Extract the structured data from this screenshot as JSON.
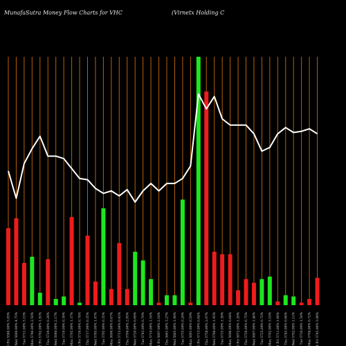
{
  "header": {
    "title_left": "MunafaSutra  Money Flow  Charts for VHC",
    "title_right": "(Virnetx Holding C"
  },
  "chart_data": {
    "type": "bar",
    "title": "MunafaSutra  Money Flow  Charts for VHC",
    "subtitle": "(Virnetx Holding C",
    "colors": {
      "up": "#1ee61e",
      "down": "#ee1c1c",
      "line": "#ffffff",
      "grid": "#b8620a",
      "background": "#000000"
    },
    "categories": [
      "29 Fri Nov 2024",
      "27 Wed Nov 2024",
      "26 Tue Nov 2024",
      "25 Mon Nov 2024",
      "22 Fri Nov 2024",
      "21 Thu Nov 2024",
      "20 Wed Nov 2024",
      "19 Tue Nov 2024",
      "18 Mon Nov 2024",
      "15 Fri Nov 2024",
      "14 Thu Nov 2024",
      "13 Wed Nov 2024",
      "12 Tue Nov 2024",
      "11 Mon Nov 2024",
      "08 Fri Nov 2024",
      "07 Thu Nov 2024",
      "06 Wed Nov 2024",
      "05 Tue Nov 2024",
      "04 Mon Nov 2024",
      "01 Fri Nov 2024",
      "31 Thu Oct 2024",
      "30 Wed Oct 2024",
      "29 Tue Oct 2024",
      "28 Mon Oct 2024",
      "25 Fri Oct 2024",
      "24 Thu Oct 2024",
      "23 Wed Oct 2024",
      "22 Tue Oct 2024",
      "21 Mon Oct 2024",
      "18 Fri Oct 2024",
      "17 Thu Oct 2024",
      "16 Wed Oct 2024",
      "15 Tue Oct 2024",
      "14 Mon Oct 2024",
      "11 Fri Oct 2024",
      "10 Thu Oct 2024",
      "09 Wed Oct 2024",
      "08 Tue Oct 2024",
      "07 Mon Oct 2024",
      "04 Fri Oct 2024"
    ],
    "tick_labels": [
      "29 Fri 5586.00% 3.05%",
      "27 Wed 5600.90% 4.75%",
      "26 Tue 5711.00% 3.15%",
      "25 Mon 5746.00% 2.50%",
      "22 Fri 5702.00% 1.91%",
      "21 Thu 5729.00% 0.28%",
      "20 Wed 5640.00% 2.17%",
      "19 Tue 5719.00% 0.39%",
      "18 Mon 5705.00% 1.37%",
      "15 Fri 5716.00% 0.74%",
      "14 Thu 5717.00% 0.35%",
      "13 Wed 5785.00% 1.97%",
      "12 Tue 5705.00% 0.35%",
      "11 Mon 5696.00% 0.67%",
      "08 Fri 5713.00% 0.41%",
      "07 Thu 5794.00% 2.95%",
      "06 Wed 5720.00% 0.69%",
      "05 Tue 5743.00% 0.70%",
      "04 Mon 5719.00% 1.16%",
      "01 Fri 5697.00% 2.18%",
      "31 Thu 5661.00% 3.27%",
      "30 Wed 5665.00% 1.90%",
      "29 Tue 5733.00% 0.29%",
      "28 Mon 5691.00% 0.59%",
      "25 Fri 5713.00% 0.84%",
      "24 Thu 5758.00% 2.07%",
      "23 Wed 5788.00% 1.95%",
      "22 Tue 5715.00% 1.30%",
      "21 Mon 5696.00% 0.64%",
      "18 Fri 5672.00% 1.29%",
      "17 Thu 5730.00% 0.75%",
      "16 Wed 5697.00% 1.46%",
      "15 Tue 5723.00% 0.72%",
      "14 Mon 5702.00% 3.10%",
      "11 Fri 5711.00% 1.66%",
      "10 Thu 5745.00% 0.66%",
      "09 Wed 5702.00% 1.11%",
      "08 Tue 5730.00% 1.50%",
      "07 Mon 5704.00% 0.72%",
      "04 Fri 5745.00% 3.88%"
    ],
    "ylim": [
      0,
      100
    ],
    "series": [
      {
        "kind": "bar",
        "values": [
          31,
          35,
          17,
          19.5,
          5,
          18.5,
          2.5,
          3.5,
          35.5,
          1,
          28,
          9.5,
          39,
          6.5,
          25,
          6.5,
          21.5,
          18,
          10.5,
          1,
          4,
          4,
          42.5,
          1,
          100,
          86,
          21.5,
          20.5,
          20.5,
          6,
          10.5,
          9,
          10.5,
          11.5,
          1.5,
          4,
          3.5,
          1,
          2.5,
          11
        ],
        "direction": [
          "down",
          "down",
          "down",
          "up",
          "up",
          "down",
          "up",
          "up",
          "down",
          "up",
          "down",
          "down",
          "up",
          "down",
          "down",
          "down",
          "up",
          "up",
          "up",
          "down",
          "up",
          "up",
          "up",
          "down",
          "up",
          "down",
          "down",
          "down",
          "down",
          "down",
          "down",
          "down",
          "up",
          "up",
          "down",
          "up",
          "up",
          "down",
          "down",
          "down"
        ]
      },
      {
        "kind": "line",
        "values": [
          54,
          43,
          57,
          63,
          68,
          60,
          60,
          59,
          55,
          51,
          50.5,
          47,
          45,
          46,
          44,
          46.5,
          41.5,
          46,
          49,
          46,
          49,
          49,
          51,
          56,
          85,
          79,
          84,
          75,
          72.5,
          72.5,
          72.5,
          69,
          62,
          63.5,
          69,
          71.5,
          69.5,
          70,
          71,
          69
        ]
      }
    ]
  }
}
